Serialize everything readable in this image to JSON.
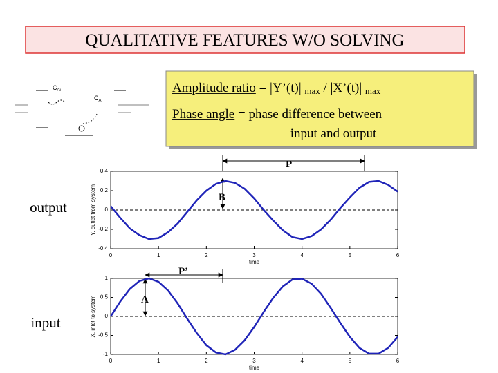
{
  "title": "QUALITATIVE FEATURES W/O SOLVING",
  "diagram": {
    "inlet": {
      "symbol": "C",
      "sub": "Ai"
    },
    "outlet": {
      "symbol": "C",
      "sub": "A"
    }
  },
  "notes": {
    "amplitude": {
      "term": "Amplitude ratio",
      "parts": [
        " = |Y’(t)| ",
        "max",
        " / |X’(t)| ",
        "max"
      ]
    },
    "phase": {
      "term": "Phase angle",
      "rest": " = phase difference between",
      "line2": "input and output"
    }
  },
  "chart_data": [
    {
      "type": "line",
      "side_label": "output",
      "xlabel": "time",
      "ylabel": "Y, outlet from system",
      "xlim": [
        0,
        6
      ],
      "xticks": [
        0,
        1,
        2,
        3,
        4,
        5,
        6
      ],
      "ylim": [
        -0.4,
        0.4
      ],
      "yticks": [
        -0.4,
        -0.2,
        0,
        0.2,
        0.4
      ],
      "zero_line": true,
      "annotations": [
        "P",
        "B"
      ],
      "x": [
        0,
        0.2,
        0.4,
        0.6,
        0.8,
        1,
        1.2,
        1.4,
        1.6,
        1.8,
        2,
        2.2,
        2.4,
        2.6,
        2.8,
        3,
        3.2,
        3.4,
        3.6,
        3.8,
        4,
        4.2,
        4.4,
        4.6,
        4.8,
        5,
        5.2,
        5.4,
        5.6,
        5.8,
        6
      ],
      "series": [
        {
          "color": "#1f24b8",
          "values": [
            0.04,
            -0.08,
            -0.19,
            -0.26,
            -0.3,
            -0.29,
            -0.23,
            -0.14,
            -0.02,
            0.1,
            0.2,
            0.27,
            0.3,
            0.28,
            0.22,
            0.12,
            0,
            -0.11,
            -0.21,
            -0.28,
            -0.3,
            -0.27,
            -0.2,
            -0.1,
            0.02,
            0.13,
            0.23,
            0.29,
            0.3,
            0.26,
            0.19
          ]
        }
      ]
    },
    {
      "type": "line",
      "side_label": "input",
      "xlabel": "time",
      "ylabel": "X, inlet to system",
      "xlim": [
        0,
        6
      ],
      "xticks": [
        0,
        1,
        2,
        3,
        4,
        5,
        6
      ],
      "ylim": [
        -1,
        1
      ],
      "yticks": [
        -1,
        -0.5,
        0,
        0.5,
        1
      ],
      "zero_line": true,
      "annotations": [
        "P’",
        "A"
      ],
      "x": [
        0,
        0.2,
        0.4,
        0.6,
        0.8,
        1,
        1.2,
        1.4,
        1.6,
        1.8,
        2,
        2.2,
        2.4,
        2.6,
        2.8,
        3,
        3.2,
        3.4,
        3.6,
        3.8,
        4,
        4.2,
        4.4,
        4.6,
        4.8,
        5,
        5.2,
        5.4,
        5.6,
        5.8,
        6
      ],
      "series": [
        {
          "color": "#1f24b8",
          "values": [
            0,
            0.39,
            0.72,
            0.93,
            1,
            0.91,
            0.68,
            0.34,
            -0.06,
            -0.44,
            -0.76,
            -0.95,
            -1,
            -0.88,
            -0.63,
            -0.28,
            0.12,
            0.49,
            0.79,
            0.97,
            0.99,
            0.86,
            0.59,
            0.22,
            -0.17,
            -0.54,
            -0.83,
            -0.98,
            -0.98,
            -0.83,
            -0.54
          ]
        }
      ]
    }
  ]
}
